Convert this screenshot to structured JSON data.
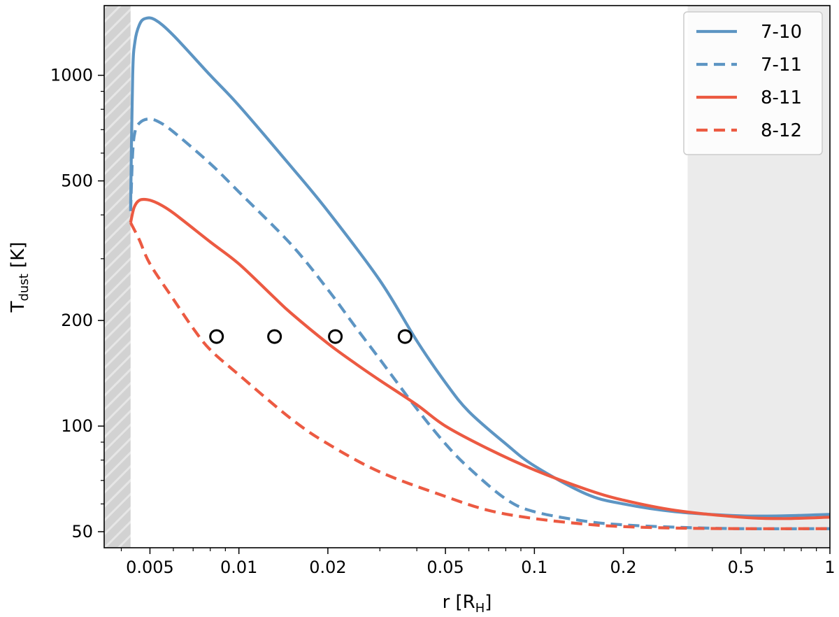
{
  "chart_data": {
    "type": "line",
    "xlabel_main": "r [R",
    "xlabel_sub": "H",
    "xlabel_end": "]",
    "ylabel_main": "T",
    "ylabel_sub": "dust",
    "ylabel_end": " [K]",
    "xscale": "log",
    "yscale": "log",
    "xlim": [
      0.0035,
      1.0
    ],
    "ylim": [
      45,
      1580
    ],
    "xticks": [
      {
        "value": 0.005,
        "label": "0.005"
      },
      {
        "value": 0.01,
        "label": "0.01"
      },
      {
        "value": 0.02,
        "label": "0.02"
      },
      {
        "value": 0.05,
        "label": "0.05"
      },
      {
        "value": 0.1,
        "label": "0.1"
      },
      {
        "value": 0.2,
        "label": "0.2"
      },
      {
        "value": 0.5,
        "label": "0.5"
      },
      {
        "value": 1.0,
        "label": "1"
      }
    ],
    "yticks": [
      {
        "value": 50,
        "label": "50"
      },
      {
        "value": 100,
        "label": "100"
      },
      {
        "value": 200,
        "label": "200"
      },
      {
        "value": 500,
        "label": "500"
      },
      {
        "value": 1000,
        "label": "1000"
      }
    ],
    "shaded_regions": [
      {
        "x0": 0.0035,
        "x1": 0.0043,
        "hatched": true
      },
      {
        "x0": 0.33,
        "x1": 1.0,
        "hatched": false
      }
    ],
    "series": [
      {
        "name": "7-10",
        "color": "#5d95c3",
        "dashed": false,
        "points": [
          [
            0.0043,
            420
          ],
          [
            0.00437,
            1000
          ],
          [
            0.00445,
            1250
          ],
          [
            0.0046,
            1390
          ],
          [
            0.0048,
            1450
          ],
          [
            0.0052,
            1440
          ],
          [
            0.006,
            1300
          ],
          [
            0.008,
            1000
          ],
          [
            0.01,
            820
          ],
          [
            0.015,
            550
          ],
          [
            0.02,
            410
          ],
          [
            0.03,
            260
          ],
          [
            0.04,
            175
          ],
          [
            0.05,
            133
          ],
          [
            0.06,
            110
          ],
          [
            0.08,
            89
          ],
          [
            0.1,
            77
          ],
          [
            0.15,
            64
          ],
          [
            0.2,
            60
          ],
          [
            0.3,
            57
          ],
          [
            0.5,
            55.5
          ],
          [
            0.7,
            55.5
          ],
          [
            1.0,
            56
          ]
        ]
      },
      {
        "name": "7-11",
        "color": "#5d95c3",
        "dashed": true,
        "points": [
          [
            0.0043,
            410
          ],
          [
            0.00437,
            600
          ],
          [
            0.00445,
            690
          ],
          [
            0.0046,
            730
          ],
          [
            0.0049,
            750
          ],
          [
            0.0053,
            740
          ],
          [
            0.006,
            690
          ],
          [
            0.008,
            560
          ],
          [
            0.01,
            465
          ],
          [
            0.015,
            330
          ],
          [
            0.02,
            245
          ],
          [
            0.025,
            190
          ],
          [
            0.03,
            155
          ],
          [
            0.04,
            112
          ],
          [
            0.05,
            89
          ],
          [
            0.06,
            76
          ],
          [
            0.08,
            62
          ],
          [
            0.1,
            57
          ],
          [
            0.15,
            53.5
          ],
          [
            0.2,
            52.3
          ],
          [
            0.3,
            51.5
          ],
          [
            0.5,
            51
          ],
          [
            1.0,
            51
          ]
        ]
      },
      {
        "name": "8-11",
        "color": "#ec5a42",
        "dashed": false,
        "points": [
          [
            0.0043,
            380
          ],
          [
            0.00442,
            420
          ],
          [
            0.0046,
            440
          ],
          [
            0.0049,
            442
          ],
          [
            0.0053,
            432
          ],
          [
            0.006,
            405
          ],
          [
            0.008,
            335
          ],
          [
            0.01,
            290
          ],
          [
            0.013,
            235
          ],
          [
            0.015,
            210
          ],
          [
            0.02,
            172
          ],
          [
            0.025,
            150
          ],
          [
            0.03,
            135
          ],
          [
            0.04,
            115
          ],
          [
            0.05,
            100
          ],
          [
            0.07,
            86
          ],
          [
            0.1,
            75
          ],
          [
            0.15,
            66
          ],
          [
            0.2,
            61.5
          ],
          [
            0.3,
            57.5
          ],
          [
            0.5,
            55
          ],
          [
            0.7,
            54.5
          ],
          [
            1.0,
            55
          ]
        ]
      },
      {
        "name": "8-12",
        "color": "#ec5a42",
        "dashed": true,
        "points": [
          [
            0.0043,
            380
          ],
          [
            0.0046,
            340
          ],
          [
            0.005,
            290
          ],
          [
            0.006,
            230
          ],
          [
            0.007,
            190
          ],
          [
            0.008,
            165
          ],
          [
            0.01,
            140
          ],
          [
            0.015,
            105
          ],
          [
            0.02,
            89
          ],
          [
            0.03,
            74
          ],
          [
            0.05,
            63
          ],
          [
            0.07,
            57.5
          ],
          [
            0.1,
            54.5
          ],
          [
            0.15,
            52.5
          ],
          [
            0.2,
            51.7
          ],
          [
            0.3,
            51.2
          ],
          [
            0.5,
            51
          ],
          [
            1.0,
            51
          ]
        ]
      }
    ],
    "markers": [
      {
        "x": 0.0084,
        "y": 180
      },
      {
        "x": 0.0132,
        "y": 180
      },
      {
        "x": 0.0212,
        "y": 180
      },
      {
        "x": 0.0365,
        "y": 180
      }
    ],
    "legend": {
      "position": "top-right"
    },
    "grid": false
  }
}
